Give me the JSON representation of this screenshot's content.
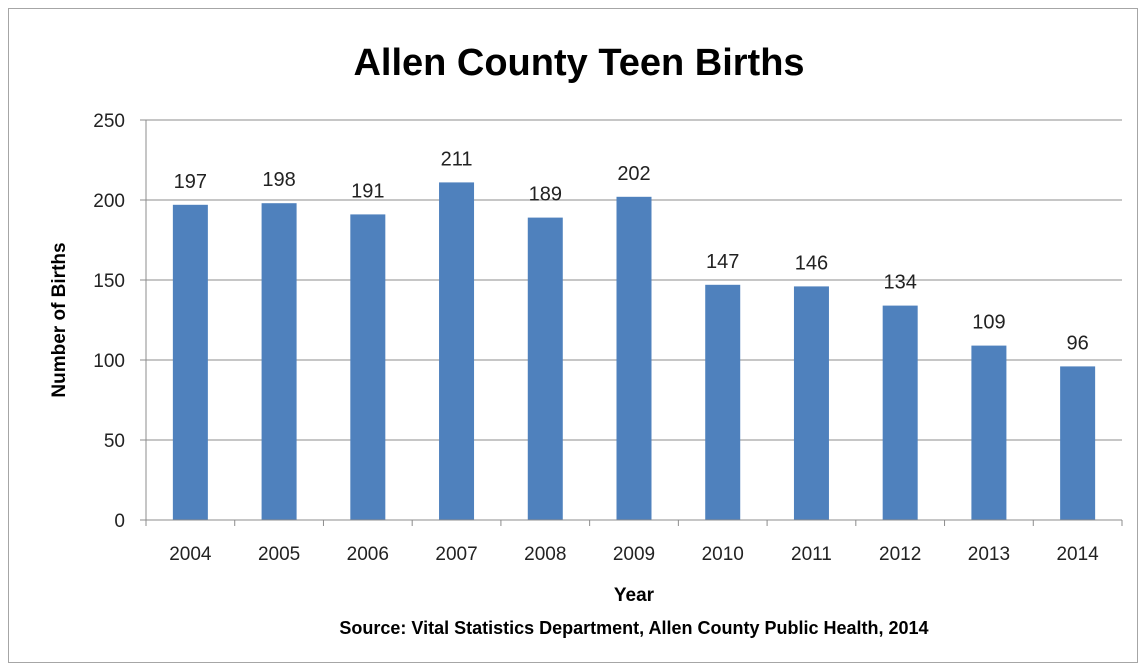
{
  "chart_data": {
    "type": "bar",
    "title": "Allen County Teen Births",
    "xlabel": "Year",
    "ylabel": "Number of Births",
    "source": "Source: Vital Statistics Department, Allen County Public Health, 2014",
    "categories": [
      "2004",
      "2005",
      "2006",
      "2007",
      "2008",
      "2009",
      "2010",
      "2011",
      "2012",
      "2013",
      "2014"
    ],
    "values": [
      197,
      198,
      191,
      211,
      189,
      202,
      147,
      146,
      134,
      109,
      96
    ],
    "data_labels": [
      "197",
      "198",
      "191",
      "211",
      "189",
      "202",
      "147",
      "146",
      "134",
      "109",
      "96"
    ],
    "ylim": [
      0,
      250
    ],
    "yticks": [
      0,
      50,
      100,
      150,
      200,
      250
    ],
    "ytick_labels": [
      "0",
      "50",
      "100",
      "150",
      "200",
      "250"
    ],
    "grid": true,
    "legend": "none",
    "bar_color": "#4f81bd",
    "grid_color": "#8c8c8c"
  }
}
